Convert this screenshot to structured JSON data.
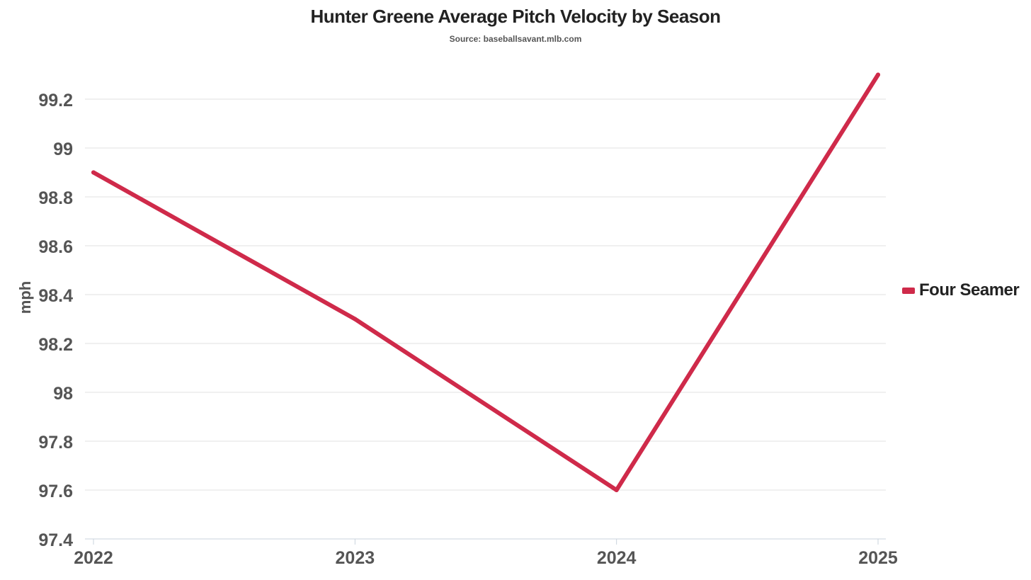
{
  "chart_data": {
    "type": "line",
    "title": "Hunter Greene Average Pitch Velocity by Season",
    "subtitle": "Source: baseballsavant.mlb.com",
    "xlabel": "",
    "ylabel": "mph",
    "categories": [
      "2022",
      "2023",
      "2024",
      "2025"
    ],
    "series": [
      {
        "name": "Four Seamer",
        "values": [
          98.9,
          98.3,
          97.6,
          99.3
        ],
        "color": "#cf2a4a"
      }
    ],
    "ylim": [
      97.4,
      99.3
    ],
    "yticks": [
      "97.4",
      "97.6",
      "97.8",
      "98",
      "98.2",
      "98.4",
      "98.6",
      "98.8",
      "99",
      "99.2"
    ],
    "grid": true,
    "legend_position": "right"
  }
}
